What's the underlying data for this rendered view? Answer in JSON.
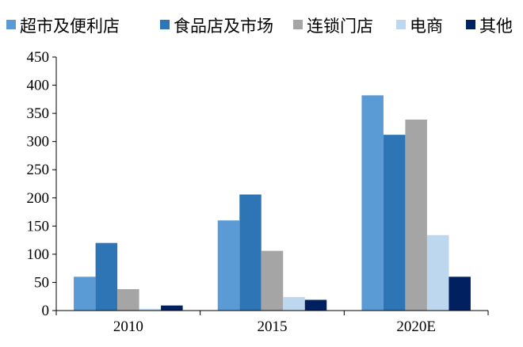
{
  "chart_data": {
    "type": "bar",
    "title": "",
    "xlabel": "",
    "ylabel": "",
    "categories": [
      "2010",
      "2015",
      "2020E"
    ],
    "ylim": [
      0,
      450
    ],
    "yticks": [
      "0",
      "50",
      "100",
      "150",
      "200",
      "250",
      "300",
      "350",
      "400",
      "450"
    ],
    "grid": false,
    "legend_position": "top",
    "series": [
      {
        "name": "超市及便利店",
        "color": "#5b9bd5",
        "values": [
          60,
          160,
          382
        ]
      },
      {
        "name": "食品店及市场",
        "color": "#2e75b6",
        "values": [
          120,
          206,
          312
        ]
      },
      {
        "name": "连锁门店",
        "color": "#a5a5a5",
        "values": [
          38,
          106,
          339
        ]
      },
      {
        "name": "电商",
        "color": "#bdd7ee",
        "values": [
          3,
          24,
          134
        ]
      },
      {
        "name": "其他",
        "color": "#002060",
        "values": [
          9,
          19,
          60
        ]
      }
    ]
  }
}
